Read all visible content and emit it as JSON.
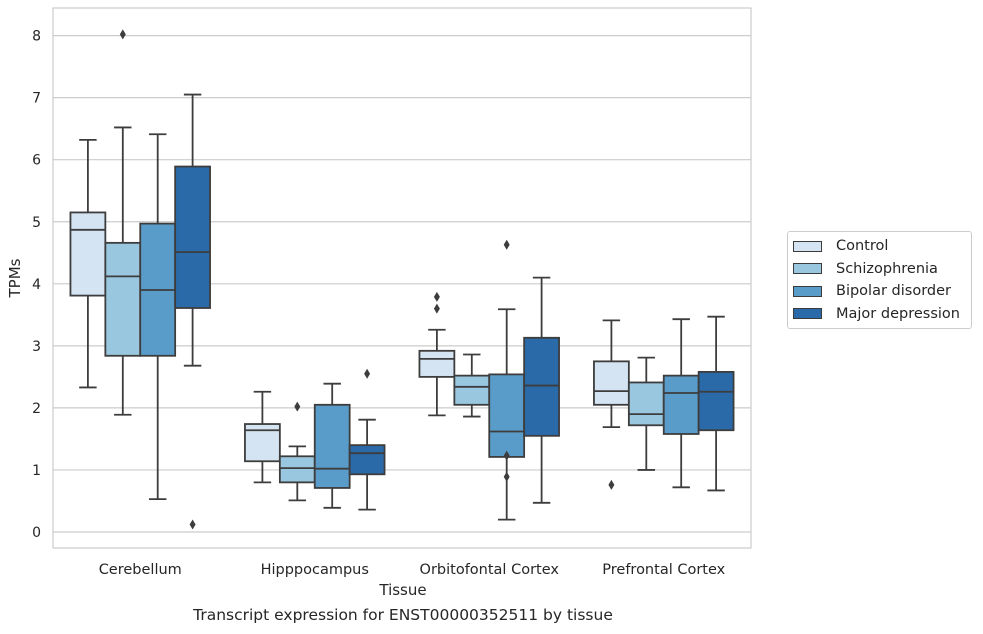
{
  "chart_data": {
    "type": "boxplot",
    "xlabel": "Tissue",
    "ylabel": "TPMs",
    "caption": "Transcript expression for ENST00000352511 by tissue",
    "ylim": [
      -0.25,
      8.4
    ],
    "yticks": [
      0,
      1,
      2,
      3,
      4,
      5,
      6,
      7,
      8
    ],
    "grid": "horizontal",
    "legend_position": "right",
    "categories": [
      "Cerebellum",
      "Hipppocampus",
      "Orbitofontal Cortex",
      "Prefrontal Cortex"
    ],
    "series": [
      {
        "name": "Control",
        "color": "#d4e4f2",
        "boxes": [
          {
            "whislo": 2.33,
            "q1": 3.81,
            "med": 4.87,
            "q3": 5.15,
            "whishi": 6.32,
            "fliers": []
          },
          {
            "whislo": 0.8,
            "q1": 1.14,
            "med": 1.64,
            "q3": 1.74,
            "whishi": 2.26,
            "fliers": []
          },
          {
            "whislo": 1.88,
            "q1": 2.5,
            "med": 2.79,
            "q3": 2.92,
            "whishi": 3.26,
            "fliers": [
              3.6,
              3.79
            ]
          },
          {
            "whislo": 1.69,
            "q1": 2.05,
            "med": 2.27,
            "q3": 2.75,
            "whishi": 3.41,
            "fliers": [
              0.76
            ]
          }
        ]
      },
      {
        "name": "Schizophrenia",
        "color": "#9ac7e0",
        "boxes": [
          {
            "whislo": 1.89,
            "q1": 2.84,
            "med": 4.12,
            "q3": 4.66,
            "whishi": 6.52,
            "fliers": [
              8.02
            ]
          },
          {
            "whislo": 0.51,
            "q1": 0.8,
            "med": 1.03,
            "q3": 1.22,
            "whishi": 1.38,
            "fliers": [
              2.02
            ]
          },
          {
            "whislo": 1.86,
            "q1": 2.05,
            "med": 2.34,
            "q3": 2.52,
            "whishi": 2.86,
            "fliers": []
          },
          {
            "whislo": 1.0,
            "q1": 1.72,
            "med": 1.9,
            "q3": 2.41,
            "whishi": 2.81,
            "fliers": []
          }
        ]
      },
      {
        "name": "Bipolar disorder",
        "color": "#5a9cc9",
        "boxes": [
          {
            "whislo": 0.53,
            "q1": 2.84,
            "med": 3.9,
            "q3": 4.97,
            "whishi": 6.41,
            "fliers": []
          },
          {
            "whislo": 0.39,
            "q1": 0.71,
            "med": 1.02,
            "q3": 2.05,
            "whishi": 2.39,
            "fliers": []
          },
          {
            "whislo": 0.2,
            "q1": 1.21,
            "med": 1.62,
            "q3": 2.54,
            "whishi": 3.59,
            "fliers": [
              0.89,
              1.23,
              4.63
            ]
          },
          {
            "whislo": 0.72,
            "q1": 1.58,
            "med": 2.24,
            "q3": 2.52,
            "whishi": 3.43,
            "fliers": []
          }
        ]
      },
      {
        "name": "Major depression",
        "color": "#2a6aa8",
        "boxes": [
          {
            "whislo": 2.68,
            "q1": 3.61,
            "med": 4.51,
            "q3": 5.89,
            "whishi": 7.05,
            "fliers": [
              0.12
            ]
          },
          {
            "whislo": 0.36,
            "q1": 0.93,
            "med": 1.27,
            "q3": 1.4,
            "whishi": 1.81,
            "fliers": [
              2.55
            ]
          },
          {
            "whislo": 0.47,
            "q1": 1.55,
            "med": 2.36,
            "q3": 3.13,
            "whishi": 4.1,
            "fliers": []
          },
          {
            "whislo": 0.67,
            "q1": 1.64,
            "med": 2.26,
            "q3": 2.58,
            "whishi": 3.47,
            "fliers": []
          }
        ]
      }
    ]
  }
}
